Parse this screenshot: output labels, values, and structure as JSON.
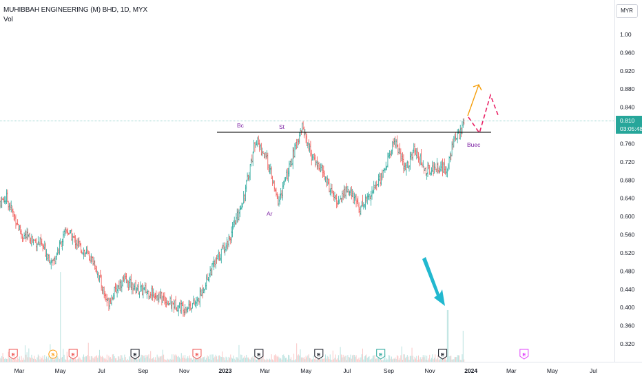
{
  "header": {
    "title": "MUHIBBAH ENGINEERING (M) BHD, 1D, MYX",
    "indicator": "Vol",
    "currency": "MYR"
  },
  "price_tag": {
    "price": "0.810",
    "countdown": "03:05:48"
  },
  "colors": {
    "up": "#26a69a",
    "down": "#ef5350",
    "resistance_line": "#000000",
    "annotation": "#9c27b0",
    "projection_up": "#f59e0b",
    "projection_alt": "#e91e63",
    "volume_arrow": "#22b8cf"
  },
  "annotations": {
    "bc": "Bc",
    "st": "St",
    "ar": "Ar",
    "buec": "Buec"
  },
  "events": [
    {
      "type": "earnings",
      "label": "E",
      "month": "Feb 2022",
      "color": "#ef5350"
    },
    {
      "type": "dividend",
      "label": "S",
      "month": "Apr 2022",
      "color": "#ff9800"
    },
    {
      "type": "earnings",
      "label": "E",
      "month": "May 2022",
      "color": "#ef5350"
    },
    {
      "type": "earnings",
      "label": "E",
      "month": "Aug 2022",
      "color": "#131722"
    },
    {
      "type": "earnings",
      "label": "E",
      "month": "Nov 2022",
      "color": "#ef5350"
    },
    {
      "type": "earnings",
      "label": "E",
      "month": "Feb 2023",
      "color": "#131722"
    },
    {
      "type": "earnings",
      "label": "E",
      "month": "May 2023",
      "color": "#131722"
    },
    {
      "type": "earnings",
      "label": "E",
      "month": "Aug 2023",
      "color": "#26a69a"
    },
    {
      "type": "earnings",
      "label": "E",
      "month": "Nov 2023",
      "color": "#131722"
    },
    {
      "type": "earnings",
      "label": "E",
      "month": "Mar 2024",
      "color": "#e040fb"
    }
  ],
  "chart_data": {
    "type": "ohlc",
    "x_axis_labels": [
      "Mar",
      "May",
      "Jul",
      "Sep",
      "Nov",
      "2023",
      "Mar",
      "May",
      "Jul",
      "Sep",
      "Nov",
      "2024",
      "Mar",
      "May",
      "Jul"
    ],
    "y_axis_labels": [
      "1.00",
      "0.960",
      "0.920",
      "0.880",
      "0.840",
      "0.800",
      "0.760",
      "0.720",
      "0.680",
      "0.640",
      "0.600",
      "0.560",
      "0.520",
      "0.480",
      "0.440",
      "0.400",
      "0.360",
      "0.320"
    ],
    "ylim": [
      0.3,
      1.02
    ],
    "resistance_level": 0.785,
    "last_price": 0.81,
    "close_series": [
      {
        "date": "2022-01-15",
        "close": 0.62
      },
      {
        "date": "2022-02-10",
        "close": 0.64
      },
      {
        "date": "2022-03-05",
        "close": 0.56
      },
      {
        "date": "2022-04-01",
        "close": 0.54
      },
      {
        "date": "2022-04-20",
        "close": 0.5
      },
      {
        "date": "2022-05-10",
        "close": 0.57
      },
      {
        "date": "2022-06-01",
        "close": 0.53
      },
      {
        "date": "2022-06-20",
        "close": 0.5
      },
      {
        "date": "2022-07-10",
        "close": 0.41
      },
      {
        "date": "2022-08-01",
        "close": 0.46
      },
      {
        "date": "2022-08-25",
        "close": 0.44
      },
      {
        "date": "2022-09-20",
        "close": 0.43
      },
      {
        "date": "2022-10-10",
        "close": 0.41
      },
      {
        "date": "2022-10-30",
        "close": 0.4
      },
      {
        "date": "2022-11-20",
        "close": 0.41
      },
      {
        "date": "2022-12-10",
        "close": 0.48
      },
      {
        "date": "2023-01-10",
        "close": 0.56
      },
      {
        "date": "2023-01-30",
        "close": 0.65
      },
      {
        "date": "2023-02-15",
        "close": 0.77
      },
      {
        "date": "2023-03-05",
        "close": 0.72
      },
      {
        "date": "2023-03-20",
        "close": 0.63
      },
      {
        "date": "2023-04-05",
        "close": 0.7
      },
      {
        "date": "2023-04-25",
        "close": 0.8
      },
      {
        "date": "2023-05-10",
        "close": 0.73
      },
      {
        "date": "2023-05-25",
        "close": 0.7
      },
      {
        "date": "2023-06-15",
        "close": 0.63
      },
      {
        "date": "2023-07-01",
        "close": 0.66
      },
      {
        "date": "2023-07-20",
        "close": 0.62
      },
      {
        "date": "2023-08-10",
        "close": 0.66
      },
      {
        "date": "2023-08-25",
        "close": 0.7
      },
      {
        "date": "2023-09-10",
        "close": 0.77
      },
      {
        "date": "2023-09-25",
        "close": 0.7
      },
      {
        "date": "2023-10-10",
        "close": 0.75
      },
      {
        "date": "2023-10-25",
        "close": 0.7
      },
      {
        "date": "2023-11-15",
        "close": 0.71
      },
      {
        "date": "2023-11-25",
        "close": 0.7
      },
      {
        "date": "2023-12-05",
        "close": 0.76
      },
      {
        "date": "2023-12-15",
        "close": 0.78
      },
      {
        "date": "2023-12-22",
        "close": 0.81
      }
    ]
  }
}
